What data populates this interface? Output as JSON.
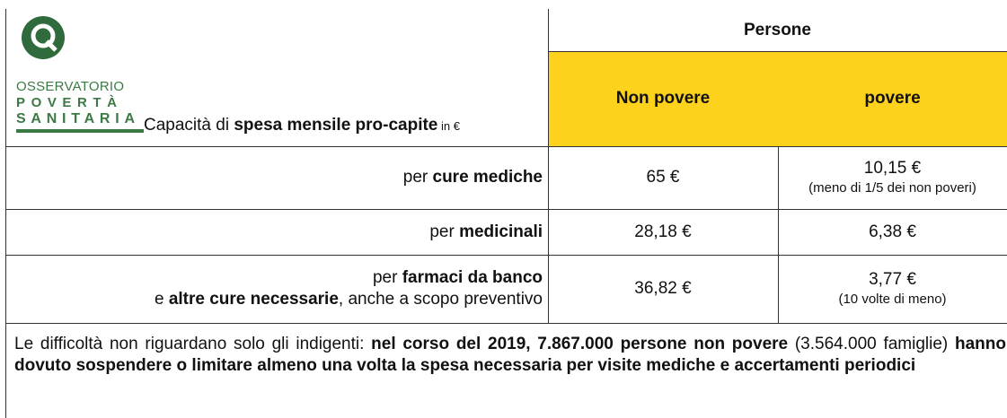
{
  "logo": {
    "lines": [
      "OSSERVATORIO",
      "POVERTÀ",
      "SANITARIA"
    ]
  },
  "table": {
    "group_header": "Persone",
    "corner": [
      {
        "text": "Capacità di ",
        "bold": false
      },
      {
        "text": "spesa mensile pro-capite",
        "bold": true
      },
      {
        "text": " in €",
        "small": true
      }
    ],
    "columns": [
      "Non povere",
      "povere"
    ],
    "rows": [
      {
        "label": [
          [
            {
              "text": "per ",
              "bold": false
            },
            {
              "text": "cure mediche",
              "bold": true
            }
          ]
        ],
        "cells": [
          {
            "value": "65 €"
          },
          {
            "value": "10,15 €",
            "note": "(meno di 1/5 dei non poveri)"
          }
        ]
      },
      {
        "label": [
          [
            {
              "text": "per ",
              "bold": false
            },
            {
              "text": "medicinali",
              "bold": true
            }
          ]
        ],
        "cells": [
          {
            "value": "28,18 €"
          },
          {
            "value": "6,38 €"
          }
        ]
      },
      {
        "label": [
          [
            {
              "text": "per ",
              "bold": false
            },
            {
              "text": "farmaci da banco",
              "bold": true
            }
          ],
          [
            {
              "text": "e ",
              "bold": false
            },
            {
              "text": "altre cure necessarie",
              "bold": true
            },
            {
              "text": ", anche a scopo preventivo",
              "bold": false
            }
          ]
        ],
        "cells": [
          {
            "value": "36,82 €"
          },
          {
            "value": "3,77 €",
            "note": "(10 volte di meno)"
          }
        ]
      }
    ]
  },
  "note": [
    {
      "text": "Le difficoltà non riguardano solo gli indigenti: ",
      "bold": false
    },
    {
      "text": "nel corso del 2019, 7.867.000 persone non povere",
      "bold": true
    },
    {
      "text": " (3.564.000 famiglie) ",
      "bold": false
    },
    {
      "text": "hanno dovuto sospendere o limitare almeno una volta la spesa necessaria per visite mediche e accertamenti periodici",
      "bold": true
    }
  ]
}
